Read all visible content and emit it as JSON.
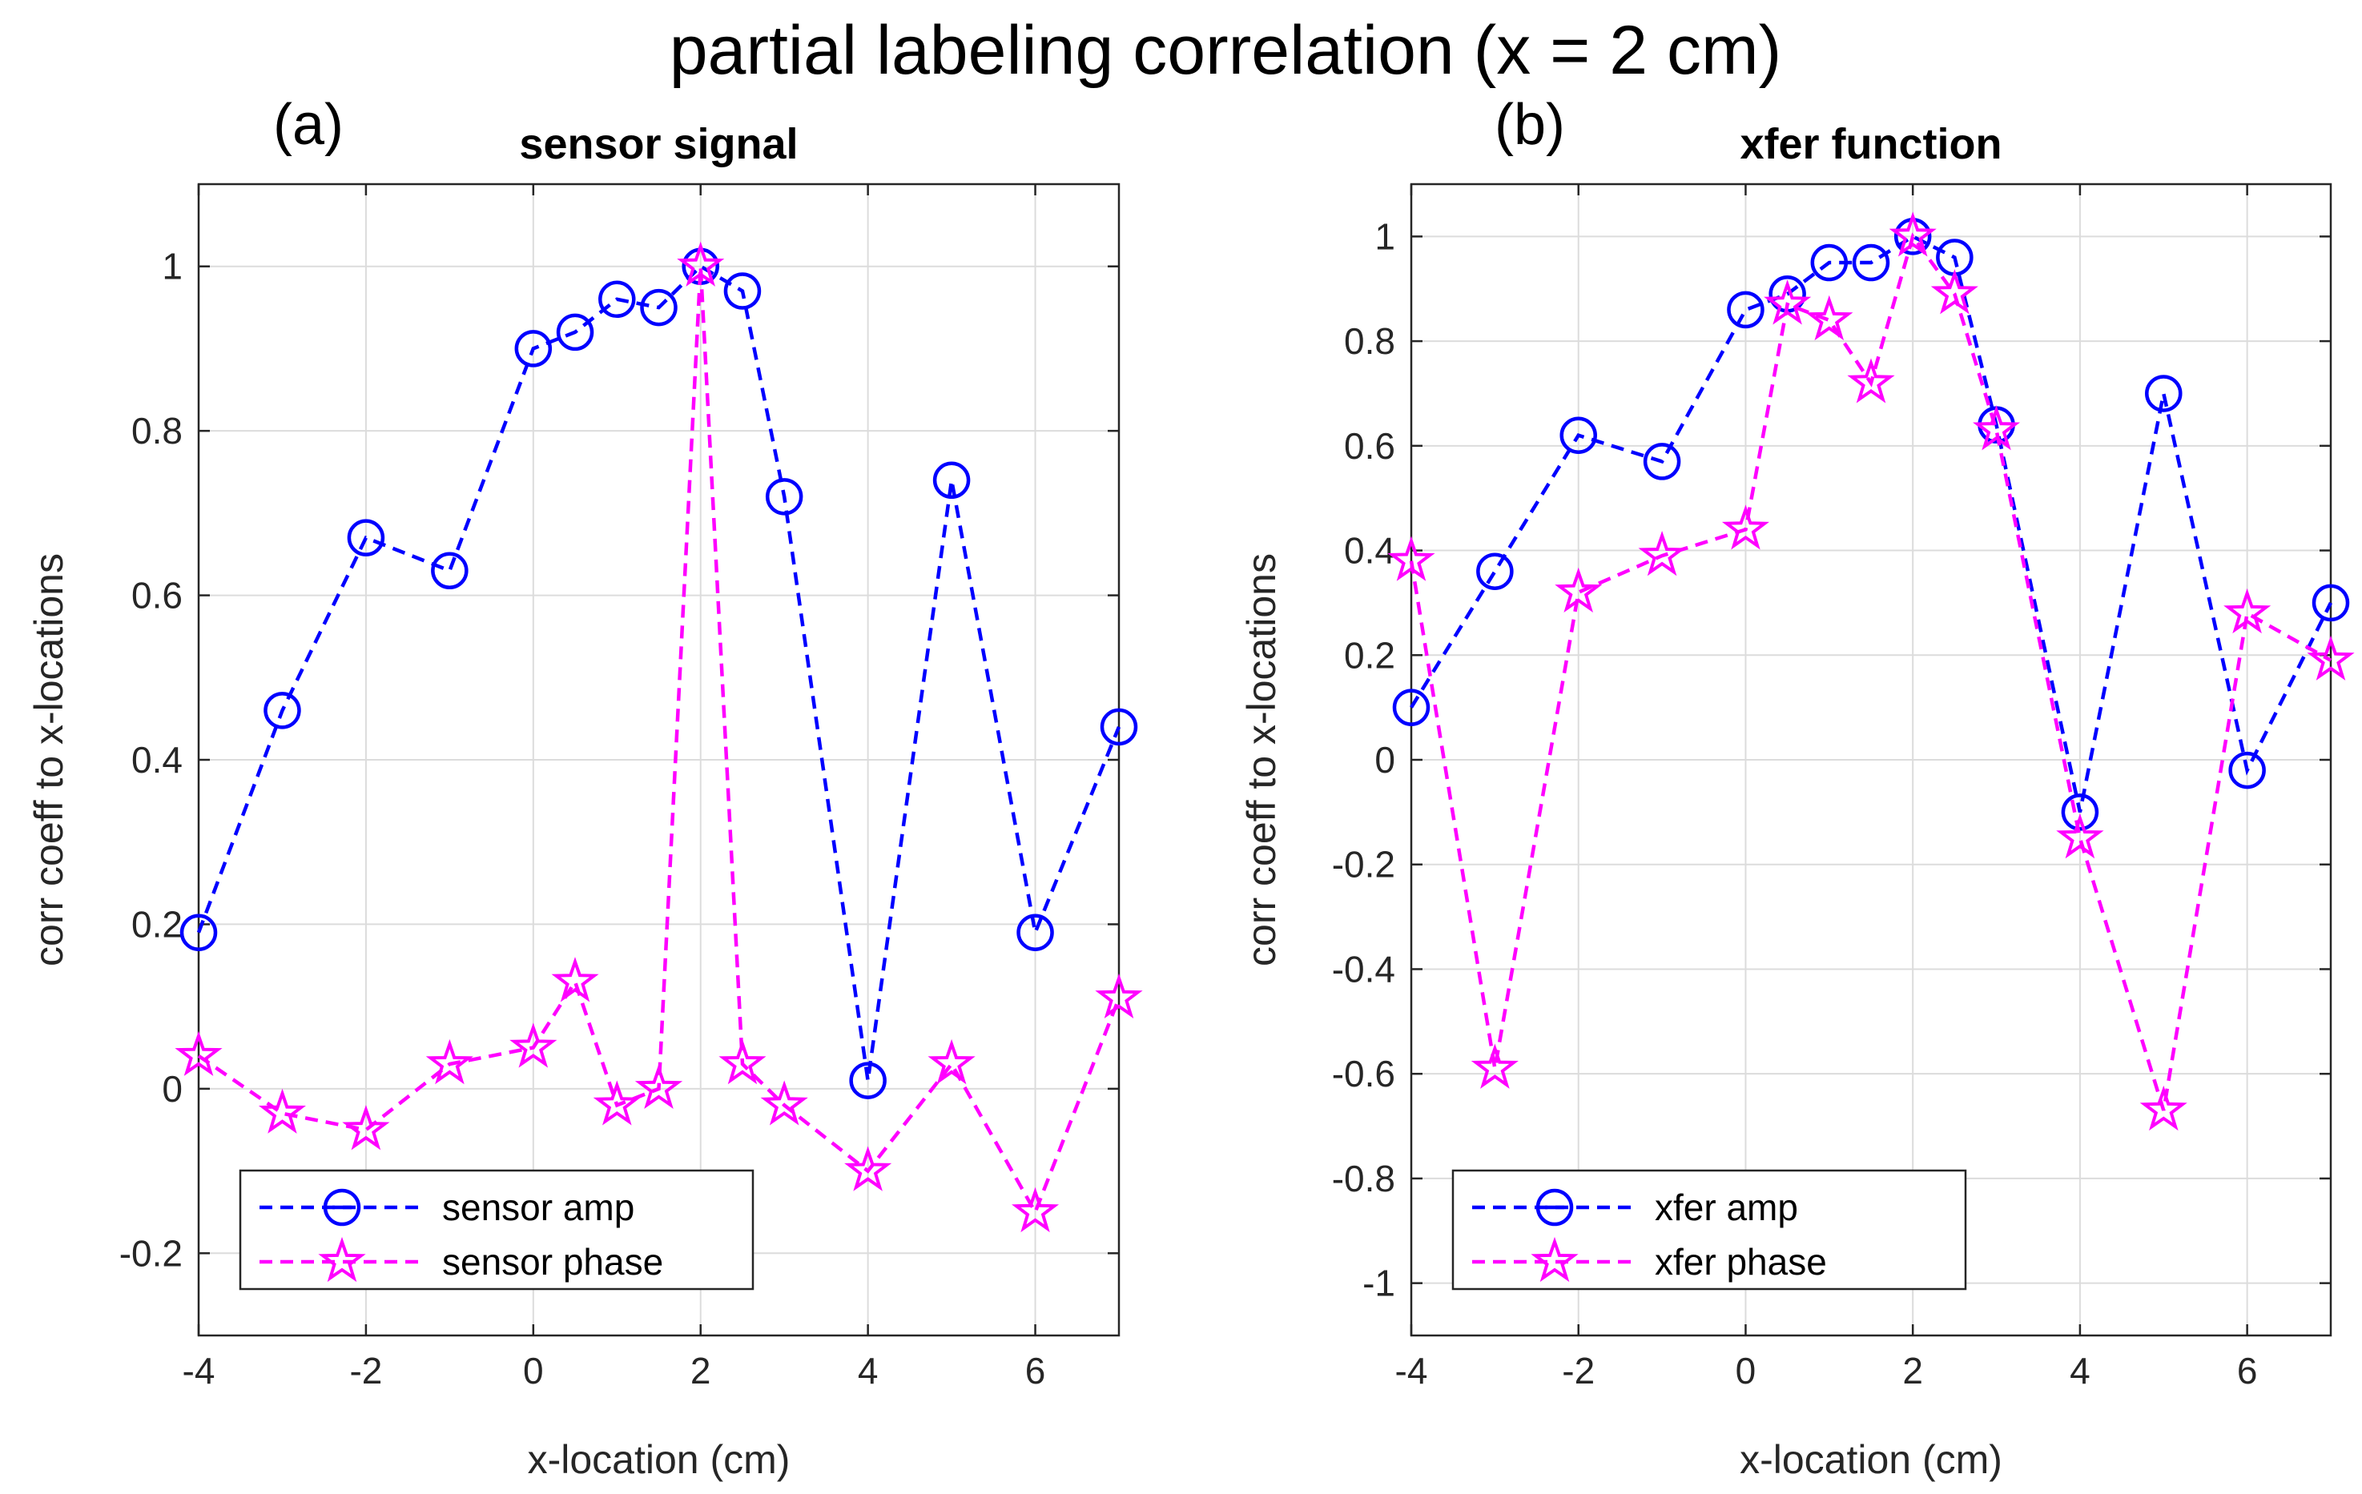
{
  "figure": {
    "suptitle": "partial labeling correlation (x = 2 cm)"
  },
  "chart_data": [
    {
      "type": "line",
      "panel_label": "(a)",
      "title": "sensor signal",
      "xlabel": "x-location (cm)",
      "ylabel": "corr coeff to x-locations",
      "xlim": [
        -4,
        7
      ],
      "ylim": [
        -0.3,
        1.1
      ],
      "xticks": [
        -4,
        -2,
        0,
        2,
        4,
        6
      ],
      "yticks": [
        -0.2,
        0,
        0.2,
        0.4,
        0.6,
        0.8,
        1
      ],
      "xtick_labels": [
        "-4",
        "-2",
        "0",
        "2",
        "4",
        "6"
      ],
      "ytick_labels": [
        "-0.2",
        "0",
        "0.2",
        "0.4",
        "0.6",
        "0.8",
        "1"
      ],
      "grid": true,
      "legend_position": "bottom-left",
      "x": [
        -4,
        -3,
        -2,
        -1,
        0,
        0.5,
        1,
        1.5,
        2,
        2.5,
        3,
        4,
        5,
        6,
        7
      ],
      "series": [
        {
          "name": "sensor amp",
          "color": "#0000ff",
          "marker": "circle",
          "values": [
            0.19,
            0.46,
            0.67,
            0.63,
            0.9,
            0.92,
            0.96,
            0.95,
            1.0,
            0.97,
            0.72,
            0.01,
            0.74,
            0.19,
            0.44
          ]
        },
        {
          "name": "sensor phase",
          "color": "#ff00ff",
          "marker": "star",
          "values": [
            0.04,
            -0.03,
            -0.05,
            0.03,
            0.05,
            0.13,
            -0.02,
            0.0,
            1.0,
            0.03,
            -0.02,
            -0.1,
            0.03,
            -0.15,
            0.11
          ]
        }
      ]
    },
    {
      "type": "line",
      "panel_label": "(b)",
      "title": "xfer function",
      "xlabel": "x-location (cm)",
      "ylabel": "corr coeff to x-locations",
      "xlim": [
        -4,
        7
      ],
      "ylim": [
        -1.1,
        1.1
      ],
      "xticks": [
        -4,
        -2,
        0,
        2,
        4,
        6
      ],
      "yticks": [
        -1,
        -0.8,
        -0.6,
        -0.4,
        -0.2,
        0,
        0.2,
        0.4,
        0.6,
        0.8,
        1
      ],
      "xtick_labels": [
        "-4",
        "-2",
        "0",
        "2",
        "4",
        "6"
      ],
      "ytick_labels": [
        "-1",
        "-0.8",
        "-0.6",
        "-0.4",
        "-0.2",
        "0",
        "0.2",
        "0.4",
        "0.6",
        "0.8",
        "1"
      ],
      "grid": true,
      "legend_position": "bottom-left",
      "x": [
        -4,
        -3,
        -2,
        -1,
        0,
        0.5,
        1,
        1.5,
        2,
        2.5,
        3,
        4,
        5,
        6,
        7
      ],
      "series": [
        {
          "name": "xfer amp",
          "color": "#0000ff",
          "marker": "circle",
          "values": [
            0.1,
            0.36,
            0.62,
            0.57,
            0.86,
            0.89,
            0.95,
            0.95,
            1.0,
            0.96,
            0.64,
            -0.1,
            0.7,
            -0.02,
            0.3
          ]
        },
        {
          "name": "xfer phase",
          "color": "#ff00ff",
          "marker": "star",
          "values": [
            0.38,
            -0.59,
            0.32,
            0.39,
            0.44,
            0.87,
            0.84,
            0.72,
            1.0,
            0.89,
            0.63,
            -0.15,
            -0.67,
            0.28,
            0.19
          ]
        }
      ]
    }
  ]
}
